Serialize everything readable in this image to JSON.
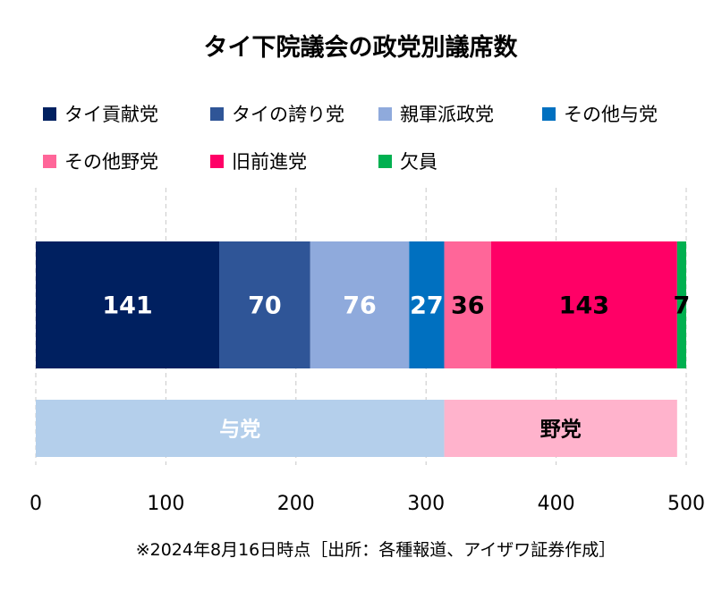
{
  "chart_data": {
    "type": "bar",
    "orientation": "horizontal",
    "stacked": true,
    "title": "タイ下院議会の政党別議席数",
    "xlim": [
      0,
      500
    ],
    "x_ticks": [
      "0",
      "100",
      "200",
      "300",
      "400",
      "500"
    ],
    "grid": "vertical dashed",
    "legend_position": "top",
    "bars": [
      {
        "segments": [
          {
            "name": "タイ貢献党",
            "value": 141,
            "color": "#002060",
            "label_color": "#ffffff"
          },
          {
            "name": "タイの誇り党",
            "value": 70,
            "color": "#2f5597",
            "label_color": "#ffffff"
          },
          {
            "name": "親軍派政党",
            "value": 76,
            "color": "#8faadc",
            "label_color": "#ffffff"
          },
          {
            "name": "その他与党",
            "value": 27,
            "color": "#0070c0",
            "label_color": "#ffffff"
          },
          {
            "name": "その他野党",
            "value": 36,
            "color": "#ff6699",
            "label_color": "#000000"
          },
          {
            "name": "旧前進党",
            "value": 143,
            "color": "#ff0066",
            "label_color": "#000000"
          },
          {
            "name": "欠員",
            "value": 7,
            "color": "#00b050",
            "label_color": "#000000"
          }
        ]
      },
      {
        "segments": [
          {
            "name": "与党",
            "value": 314,
            "color": "#b4cfeb",
            "label_color": "#ffffff"
          },
          {
            "name": "野党",
            "value": 179,
            "color": "#ffb3cc",
            "label_color": "#000000"
          }
        ]
      }
    ],
    "legend": [
      {
        "label": "タイ貢献党",
        "color": "#002060"
      },
      {
        "label": "タイの誇り党",
        "color": "#2f5597"
      },
      {
        "label": "親軍派政党",
        "color": "#8faadc"
      },
      {
        "label": "その他与党",
        "color": "#0070c0"
      },
      {
        "label": "その他野党",
        "color": "#ff6699"
      },
      {
        "label": "旧前進党",
        "color": "#ff0066"
      },
      {
        "label": "欠員",
        "color": "#00b050"
      }
    ],
    "source_note": "※2024年8月16日時点［出所：各種報道、アイザワ証券作成］"
  }
}
